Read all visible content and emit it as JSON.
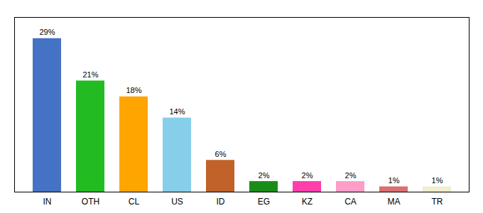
{
  "chart_data": {
    "type": "bar",
    "categories": [
      "IN",
      "OTH",
      "CL",
      "US",
      "ID",
      "EG",
      "KZ",
      "CA",
      "MA",
      "TR"
    ],
    "values": [
      29,
      21,
      18,
      14,
      6,
      2,
      2,
      2,
      1,
      1
    ],
    "value_labels": [
      "29%",
      "21%",
      "18%",
      "14%",
      "6%",
      "2%",
      "2%",
      "2%",
      "1%",
      "1%"
    ],
    "colors": [
      "#4472C4",
      "#22BB22",
      "#FFA500",
      "#87CEEB",
      "#C0622A",
      "#1A8C1A",
      "#FF3DAB",
      "#FF9DC8",
      "#D97070",
      "#F0EDD0"
    ],
    "ylim": [
      0,
      33
    ],
    "yticks": [],
    "tick_labels": "x",
    "data_labels": true
  }
}
